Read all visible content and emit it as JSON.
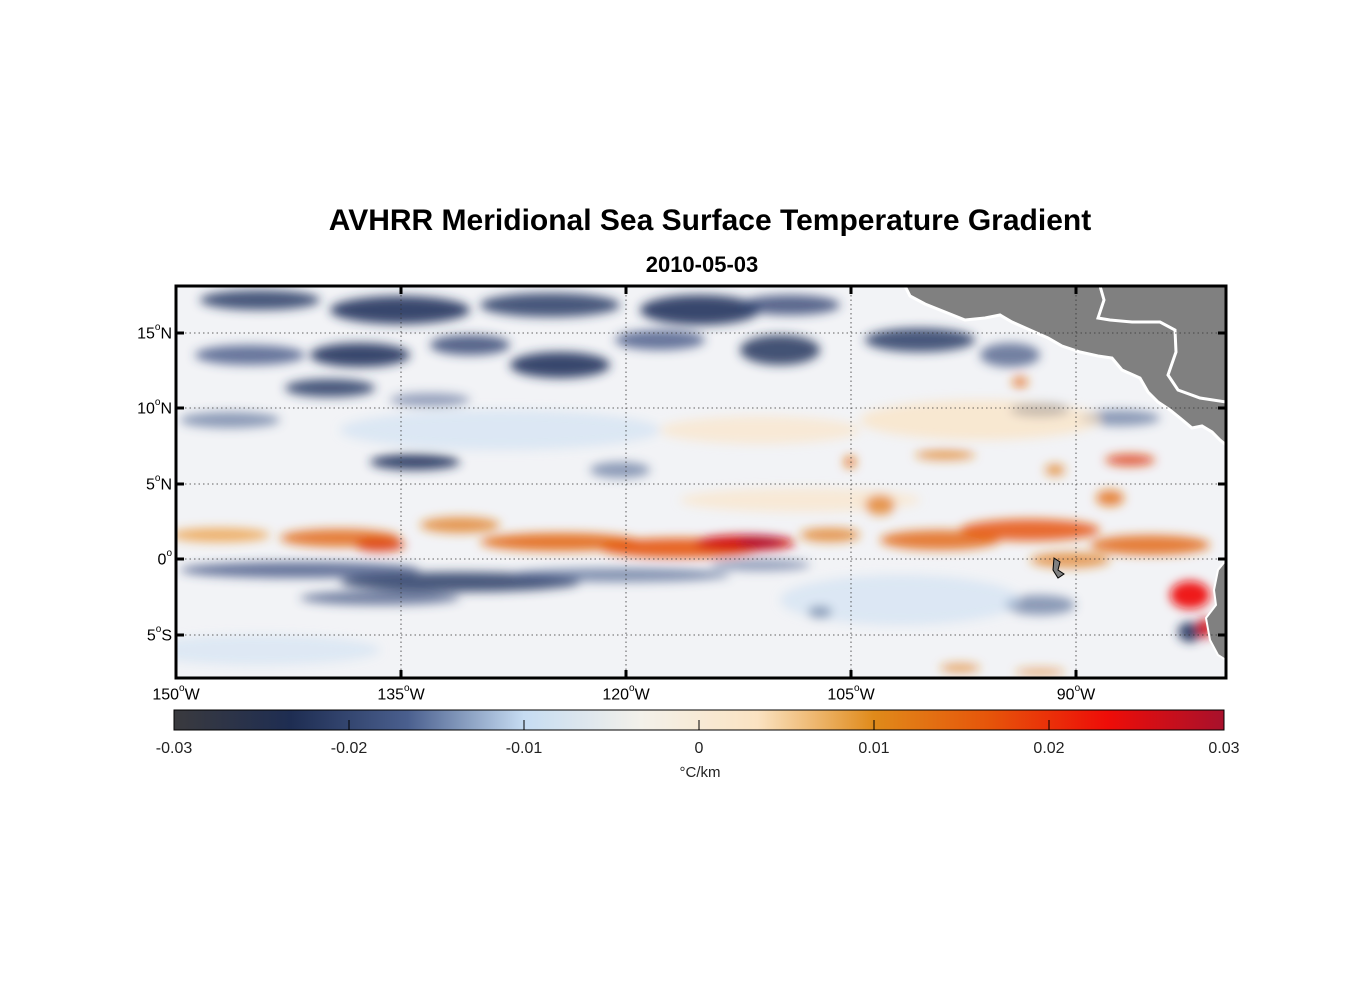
{
  "title": "AVHRR Meridional Sea Surface Temperature Gradient",
  "subtitle": "2010-05-03",
  "map": {
    "lon_range": [
      -150,
      -80
    ],
    "lat_range": [
      -8,
      18
    ],
    "lat_ticks": [
      {
        "num": "15",
        "hemi": "N"
      },
      {
        "num": "10",
        "hemi": "N"
      },
      {
        "num": "5",
        "hemi": "N"
      },
      {
        "num": "0",
        "hemi": ""
      },
      {
        "num": "5",
        "hemi": "S"
      }
    ],
    "lon_ticks": [
      {
        "num": "150",
        "hemi": "W"
      },
      {
        "num": "135",
        "hemi": "W"
      },
      {
        "num": "120",
        "hemi": "W"
      },
      {
        "num": "105",
        "hemi": "W"
      },
      {
        "num": "90",
        "hemi": "W"
      }
    ],
    "land_color": "#808080",
    "grid": "dotted"
  },
  "colorbar": {
    "ticks": [
      "-0.03",
      "-0.02",
      "-0.01",
      "0",
      "0.01",
      "0.02",
      "0.03"
    ],
    "unit": "°C/km",
    "colors": [
      "#3a3a3e",
      "#1e2d52",
      "#4a5f8e",
      "#c6dcf2",
      "#f3f1ea",
      "#fbe3c2",
      "#e08a1a",
      "#e6540a",
      "#ee0d08",
      "#a8112c"
    ]
  }
}
